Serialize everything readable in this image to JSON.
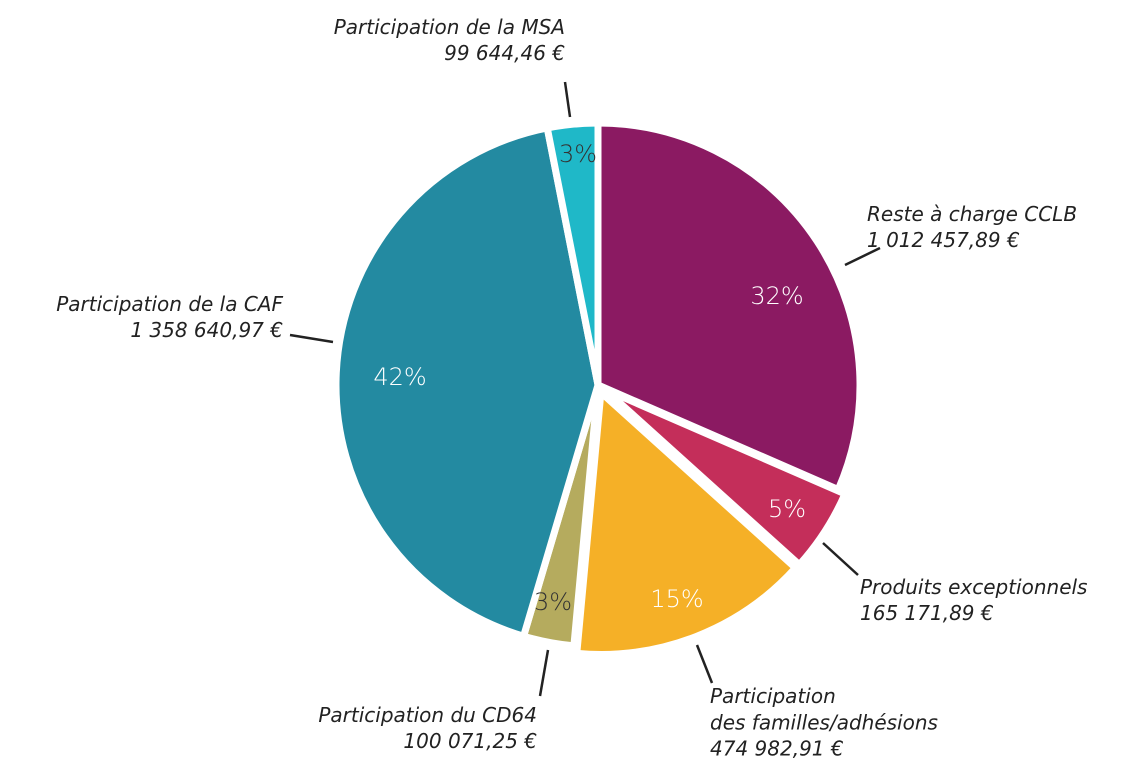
{
  "chart_data": {
    "type": "pie",
    "categories": [
      "Reste à charge CCLB",
      "Produits exceptionnels",
      "Participation\ndes familles/adhésions",
      "Participation du CD64",
      "Participation de la CAF",
      "Participation de la MSA"
    ],
    "values": [
      1012457.89,
      165171.89,
      474982.91,
      100071.25,
      1358640.97,
      99644.46
    ],
    "value_labels": [
      "1 012 457,89 €",
      "165 171,89 €",
      "474 982,91 €",
      "100 071,25 €",
      "1 358 640,97 €",
      "99 644,46 €"
    ],
    "percent_labels": [
      "32%",
      "5%",
      "15%",
      "3%",
      "42%",
      "3%"
    ],
    "colors": [
      "#8b1a62",
      "#c42e5a",
      "#f5b027",
      "#b5ab5e",
      "#238aa1",
      "#1fb8c8"
    ]
  }
}
